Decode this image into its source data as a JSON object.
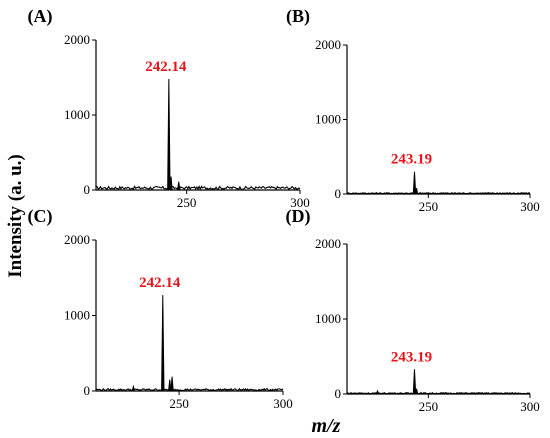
{
  "figure": {
    "ylabel": "Intensity (a. u.)",
    "xlabel": "m/z"
  },
  "chart_data": [
    {
      "type": "line",
      "panel": "(A)",
      "xlim": [
        210,
        300
      ],
      "ylim": [
        0,
        2000
      ],
      "xticks": [
        "250",
        "300"
      ],
      "yticks": [
        "0",
        "1000",
        "2000"
      ],
      "peak_label": "242.14",
      "peaks": [
        {
          "mz": 242.14,
          "intensity": 1480
        },
        {
          "mz": 243.1,
          "intensity": 180
        },
        {
          "mz": 246.5,
          "intensity": 110
        }
      ],
      "baseline": 40
    },
    {
      "type": "line",
      "panel": "(B)",
      "xlim": [
        210,
        300
      ],
      "ylim": [
        0,
        2000
      ],
      "xticks": [
        "250",
        "300"
      ],
      "yticks": [
        "0",
        "1000",
        "2000"
      ],
      "peak_label": "243.19",
      "peaks": [
        {
          "mz": 243.19,
          "intensity": 300
        },
        {
          "mz": 244.2,
          "intensity": 80
        }
      ],
      "baseline": 15
    },
    {
      "type": "line",
      "panel": "(C)",
      "xlim": [
        210,
        300
      ],
      "ylim": [
        0,
        2000
      ],
      "xticks": [
        "250",
        "300"
      ],
      "yticks": [
        "0",
        "1000",
        "2000"
      ],
      "peak_label": "242.14",
      "peaks": [
        {
          "mz": 242.14,
          "intensity": 1270
        },
        {
          "mz": 245.5,
          "intensity": 150
        },
        {
          "mz": 246.6,
          "intensity": 190
        },
        {
          "mz": 228.0,
          "intensity": 60
        }
      ],
      "baseline": 25
    },
    {
      "type": "line",
      "panel": "(D)",
      "xlim": [
        210,
        300
      ],
      "ylim": [
        0,
        2000
      ],
      "xticks": [
        "250",
        "300"
      ],
      "yticks": [
        "0",
        "1000",
        "2000"
      ],
      "peak_label": "243.19",
      "peaks": [
        {
          "mz": 243.19,
          "intensity": 330
        },
        {
          "mz": 244.2,
          "intensity": 70
        },
        {
          "mz": 225.0,
          "intensity": 40
        }
      ],
      "baseline": 15
    }
  ]
}
